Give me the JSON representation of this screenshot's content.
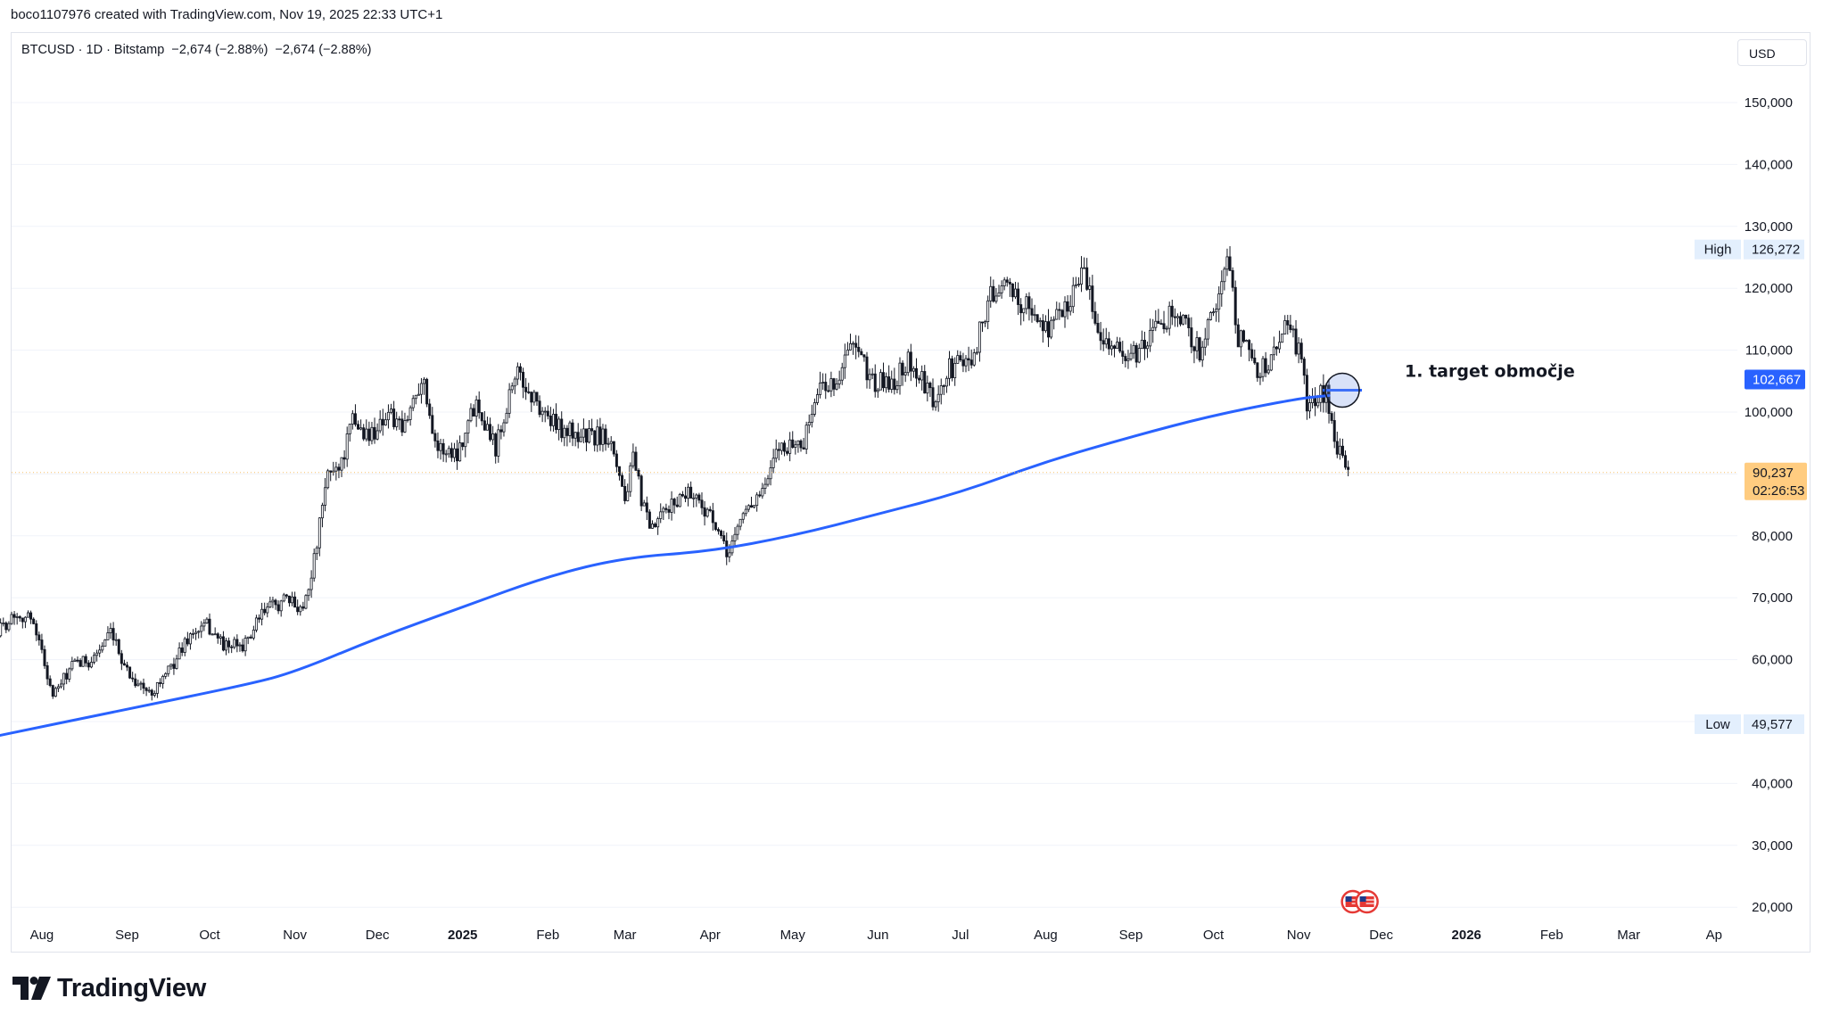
{
  "header": {
    "credit": "boco1107976 created with TradingView.com, Nov 19, 2025 22:33 UTC+1",
    "symbol_line": "BTCUSD · 1D · Bitstamp  −2,674 (−2.88%)  −2,674 (−2.88%)",
    "currency": "USD"
  },
  "branding": {
    "logo_text": "TradingView",
    "logo_icon": "tradingview-logo-icon"
  },
  "colors": {
    "candle": "#131722",
    "ma_line": "#2962ff",
    "last_price_bg": "#ffcc80",
    "price_tag_bg": "#2962ff",
    "label_bg": "#e3effd",
    "grid": "#f0f3fa"
  },
  "chart_data": {
    "type": "candlestick",
    "symbol": "BTCUSD",
    "timeframe": "1D",
    "exchange": "Bitstamp",
    "y_axis": {
      "ticks": [
        20000,
        30000,
        40000,
        50000,
        60000,
        70000,
        80000,
        90000,
        100000,
        110000,
        120000,
        130000,
        140000,
        150000
      ],
      "tick_labels": [
        "20,000",
        "30,000",
        "40,000",
        "",
        "60,000",
        "70,000",
        "80,000",
        "",
        "100,000",
        "110,000",
        "120,000",
        "130,000",
        "140,000",
        "150,000"
      ]
    },
    "x_axis": {
      "labels": [
        {
          "text": "Aug",
          "date": "2024-08-01",
          "bold": false
        },
        {
          "text": "Sep",
          "date": "2024-09-01",
          "bold": false
        },
        {
          "text": "Oct",
          "date": "2024-10-01",
          "bold": false
        },
        {
          "text": "Nov",
          "date": "2024-11-01",
          "bold": false
        },
        {
          "text": "Dec",
          "date": "2024-12-01",
          "bold": false
        },
        {
          "text": "2025",
          "date": "2025-01-01",
          "bold": true
        },
        {
          "text": "Feb",
          "date": "2025-02-01",
          "bold": false
        },
        {
          "text": "Mar",
          "date": "2025-03-01",
          "bold": false
        },
        {
          "text": "Apr",
          "date": "2025-04-01",
          "bold": false
        },
        {
          "text": "May",
          "date": "2025-05-01",
          "bold": false
        },
        {
          "text": "Jun",
          "date": "2025-06-01",
          "bold": false
        },
        {
          "text": "Jul",
          "date": "2025-07-01",
          "bold": false
        },
        {
          "text": "Aug",
          "date": "2025-08-01",
          "bold": false
        },
        {
          "text": "Sep",
          "date": "2025-09-01",
          "bold": false
        },
        {
          "text": "Oct",
          "date": "2025-10-01",
          "bold": false
        },
        {
          "text": "Nov",
          "date": "2025-11-01",
          "bold": false
        },
        {
          "text": "Dec",
          "date": "2025-12-01",
          "bold": false
        },
        {
          "text": "2026",
          "date": "2026-01-01",
          "bold": true
        },
        {
          "text": "Feb",
          "date": "2026-02-01",
          "bold": false
        },
        {
          "text": "Mar",
          "date": "2026-03-01",
          "bold": false
        },
        {
          "text": "Ap",
          "date": "2026-04-01",
          "bold": false
        }
      ]
    },
    "price_path": [
      {
        "date": "2024-07-15",
        "close": 64000
      },
      {
        "date": "2024-07-22",
        "close": 67500
      },
      {
        "date": "2024-07-29",
        "close": 66500
      },
      {
        "date": "2024-08-05",
        "close": 54000
      },
      {
        "date": "2024-08-12",
        "close": 59000
      },
      {
        "date": "2024-08-19",
        "close": 60000
      },
      {
        "date": "2024-08-26",
        "close": 64000
      },
      {
        "date": "2024-09-02",
        "close": 57500
      },
      {
        "date": "2024-09-09",
        "close": 54500
      },
      {
        "date": "2024-09-16",
        "close": 58000
      },
      {
        "date": "2024-09-23",
        "close": 63500
      },
      {
        "date": "2024-09-30",
        "close": 65500
      },
      {
        "date": "2024-10-07",
        "close": 62000
      },
      {
        "date": "2024-10-14",
        "close": 62500
      },
      {
        "date": "2024-10-21",
        "close": 68000
      },
      {
        "date": "2024-10-28",
        "close": 69500
      },
      {
        "date": "2024-11-04",
        "close": 68500
      },
      {
        "date": "2024-11-08",
        "close": 76000
      },
      {
        "date": "2024-11-13",
        "close": 90000
      },
      {
        "date": "2024-11-18",
        "close": 92000
      },
      {
        "date": "2024-11-22",
        "close": 98500
      },
      {
        "date": "2024-11-28",
        "close": 96000
      },
      {
        "date": "2024-12-05",
        "close": 100000
      },
      {
        "date": "2024-12-10",
        "close": 96500
      },
      {
        "date": "2024-12-17",
        "close": 106000
      },
      {
        "date": "2024-12-23",
        "close": 94000
      },
      {
        "date": "2024-12-30",
        "close": 93500
      },
      {
        "date": "2025-01-06",
        "close": 102000
      },
      {
        "date": "2025-01-13",
        "close": 94500
      },
      {
        "date": "2025-01-20",
        "close": 106500
      },
      {
        "date": "2025-01-27",
        "close": 102000
      },
      {
        "date": "2025-02-03",
        "close": 98000
      },
      {
        "date": "2025-02-10",
        "close": 96500
      },
      {
        "date": "2025-02-17",
        "close": 96000
      },
      {
        "date": "2025-02-24",
        "close": 96200
      },
      {
        "date": "2025-03-01",
        "close": 86000
      },
      {
        "date": "2025-03-04",
        "close": 92000
      },
      {
        "date": "2025-03-10",
        "close": 80500
      },
      {
        "date": "2025-03-17",
        "close": 84500
      },
      {
        "date": "2025-03-24",
        "close": 87500
      },
      {
        "date": "2025-03-31",
        "close": 84000
      },
      {
        "date": "2025-04-07",
        "close": 77000
      },
      {
        "date": "2025-04-14",
        "close": 84500
      },
      {
        "date": "2025-04-21",
        "close": 87500
      },
      {
        "date": "2025-04-26",
        "close": 94500
      },
      {
        "date": "2025-05-05",
        "close": 95000
      },
      {
        "date": "2025-05-10",
        "close": 103500
      },
      {
        "date": "2025-05-18",
        "close": 105500
      },
      {
        "date": "2025-05-22",
        "close": 111000
      },
      {
        "date": "2025-05-31",
        "close": 104500
      },
      {
        "date": "2025-06-07",
        "close": 105000
      },
      {
        "date": "2025-06-12",
        "close": 108500
      },
      {
        "date": "2025-06-22",
        "close": 101000
      },
      {
        "date": "2025-06-27",
        "close": 107000
      },
      {
        "date": "2025-07-05",
        "close": 108500
      },
      {
        "date": "2025-07-11",
        "close": 117500
      },
      {
        "date": "2025-07-14",
        "close": 120500
      },
      {
        "date": "2025-07-22",
        "close": 118500
      },
      {
        "date": "2025-08-01",
        "close": 113500
      },
      {
        "date": "2025-08-08",
        "close": 116500
      },
      {
        "date": "2025-08-14",
        "close": 123500
      },
      {
        "date": "2025-08-19",
        "close": 115000
      },
      {
        "date": "2025-08-25",
        "close": 110500
      },
      {
        "date": "2025-09-01",
        "close": 108500
      },
      {
        "date": "2025-09-08",
        "close": 112000
      },
      {
        "date": "2025-09-16",
        "close": 116500
      },
      {
        "date": "2025-09-22",
        "close": 113000
      },
      {
        "date": "2025-09-27",
        "close": 109500
      },
      {
        "date": "2025-10-01",
        "close": 117000
      },
      {
        "date": "2025-10-06",
        "close": 124500
      },
      {
        "date": "2025-10-10",
        "close": 112500
      },
      {
        "date": "2025-10-17",
        "close": 107000
      },
      {
        "date": "2025-10-22",
        "close": 108000
      },
      {
        "date": "2025-10-27",
        "close": 114500
      },
      {
        "date": "2025-11-01",
        "close": 110000
      },
      {
        "date": "2025-11-04",
        "close": 101500
      },
      {
        "date": "2025-11-08",
        "close": 102500
      },
      {
        "date": "2025-11-11",
        "close": 103500
      },
      {
        "date": "2025-11-14",
        "close": 95000
      },
      {
        "date": "2025-11-17",
        "close": 92000
      },
      {
        "date": "2025-11-19",
        "close": 90237
      }
    ],
    "ma_line": {
      "color": "#2962ff",
      "points": [
        {
          "date": "2024-07-15",
          "value": 47600
        },
        {
          "date": "2024-09-01",
          "value": 52000
        },
        {
          "date": "2024-10-15",
          "value": 56000
        },
        {
          "date": "2024-11-01",
          "value": 58000
        },
        {
          "date": "2024-12-01",
          "value": 63500
        },
        {
          "date": "2025-01-01",
          "value": 68500
        },
        {
          "date": "2025-02-01",
          "value": 73500
        },
        {
          "date": "2025-03-01",
          "value": 76500
        },
        {
          "date": "2025-04-01",
          "value": 77500
        },
        {
          "date": "2025-05-01",
          "value": 80000
        },
        {
          "date": "2025-06-01",
          "value": 83500
        },
        {
          "date": "2025-07-01",
          "value": 87000
        },
        {
          "date": "2025-08-01",
          "value": 92000
        },
        {
          "date": "2025-09-01",
          "value": 96000
        },
        {
          "date": "2025-10-01",
          "value": 99500
        },
        {
          "date": "2025-11-01",
          "value": 102200
        },
        {
          "date": "2025-11-12",
          "value": 102667
        }
      ]
    },
    "high": {
      "label": "High",
      "value": 126272,
      "value_text": "126,272"
    },
    "low": {
      "label": "Low",
      "value": 49577,
      "value_text": "49,577"
    },
    "ma_price_tag": {
      "value": 102667,
      "value_text": "102,667"
    },
    "last_price": {
      "value": 90237,
      "value_text": "90,237",
      "countdown": "02:26:53"
    },
    "annotation": {
      "text": "1. target območje",
      "date": "2025-11-12",
      "value": 102667
    },
    "annotation_marker": {
      "date": "2025-11-12",
      "value": 102667
    },
    "events_icon": "us-flag-event-icons"
  }
}
